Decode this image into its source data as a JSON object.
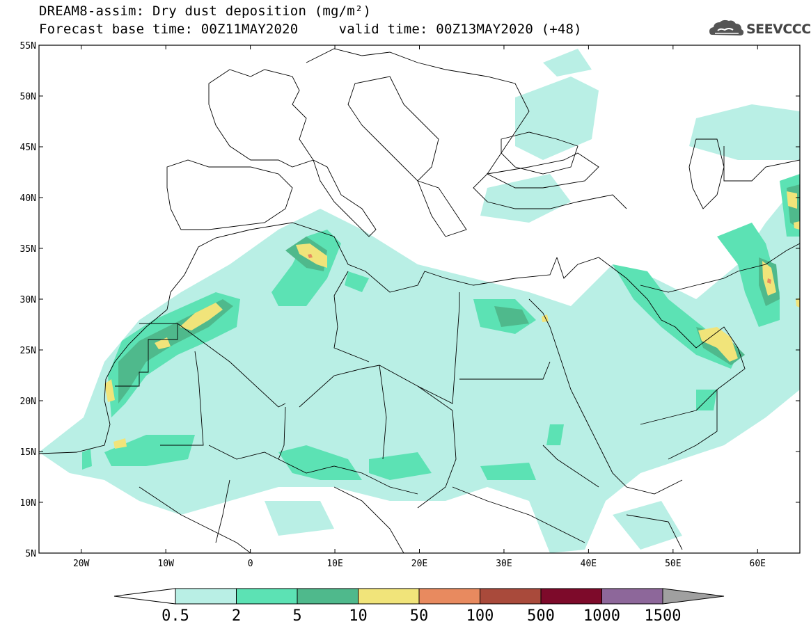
{
  "header": {
    "title_line1": "DREAM8-assim: Dry dust deposition (mg/m²)",
    "title_line2": "Forecast base time: 00Z11MAY2020     valid time: 00Z13MAY2020 (+48)",
    "logo_text": "SEEVCCC",
    "logo_icon": "cloud-icon"
  },
  "map": {
    "lon_range": [
      -25,
      65
    ],
    "lat_range": [
      5,
      55
    ],
    "lon_ticks": [
      {
        "value": -20,
        "label": "20W"
      },
      {
        "value": -10,
        "label": "10W"
      },
      {
        "value": 0,
        "label": "0"
      },
      {
        "value": 10,
        "label": "10E"
      },
      {
        "value": 20,
        "label": "20E"
      },
      {
        "value": 30,
        "label": "30E"
      },
      {
        "value": 40,
        "label": "40E"
      },
      {
        "value": 50,
        "label": "50E"
      },
      {
        "value": 60,
        "label": "60E"
      }
    ],
    "lat_ticks": [
      {
        "value": 55,
        "label": "55N"
      },
      {
        "value": 50,
        "label": "50N"
      },
      {
        "value": 45,
        "label": "45N"
      },
      {
        "value": 40,
        "label": "40N"
      },
      {
        "value": 35,
        "label": "35N"
      },
      {
        "value": 30,
        "label": "30N"
      },
      {
        "value": 25,
        "label": "25N"
      },
      {
        "value": 20,
        "label": "20N"
      },
      {
        "value": 15,
        "label": "15N"
      },
      {
        "value": 10,
        "label": "10N"
      },
      {
        "value": 5,
        "label": "5N"
      }
    ]
  },
  "colorbar": {
    "levels": [
      "0.5",
      "2",
      "5",
      "10",
      "50",
      "100",
      "500",
      "1000",
      "1500"
    ],
    "colors": [
      "#ffffff",
      "#b9efe5",
      "#5ce2b4",
      "#4fb98c",
      "#f1e47a",
      "#e88a5f",
      "#a94a3b",
      "#7d0a2a",
      "#8d679a",
      "#a0a0a0"
    ]
  },
  "colors": {
    "level1": "#b9efe5",
    "level2": "#5ce2b4",
    "level3": "#4fb98c",
    "level4": "#f1e47a",
    "level5": "#e88a5f",
    "border": "#000000"
  }
}
